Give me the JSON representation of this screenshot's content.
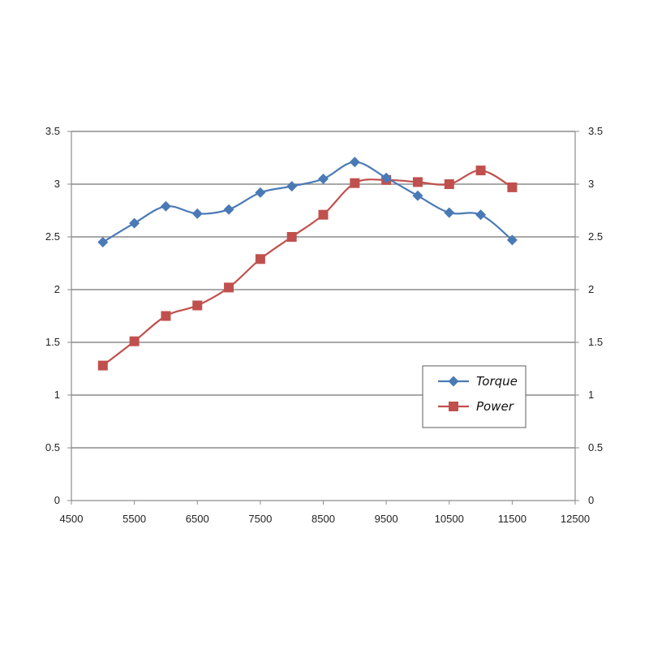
{
  "chart_data": {
    "type": "line",
    "title": "",
    "xlabel": "",
    "ylabel": "",
    "xlim": [
      4500,
      12500
    ],
    "ylim": [
      0,
      3.5
    ],
    "y2lim": [
      0,
      3.5
    ],
    "x_ticks": [
      "4500",
      "5500",
      "6500",
      "7500",
      "8500",
      "9500",
      "10500",
      "11500",
      "12500"
    ],
    "y_ticks": [
      "0",
      "0.5",
      "1",
      "1.5",
      "2",
      "2.5",
      "3",
      "3.5"
    ],
    "y2_ticks": [
      "0",
      "0.5",
      "1",
      "1.5",
      "2",
      "2.5",
      "3",
      "3.5"
    ],
    "grid": "horizontal",
    "legend_position": "right",
    "x": [
      5000,
      5500,
      6000,
      6500,
      7000,
      7500,
      8000,
      8500,
      9000,
      9500,
      10000,
      10500,
      11000,
      11500
    ],
    "series": [
      {
        "name": "Torque",
        "color": "#4a7ab5",
        "marker": "diamond",
        "values": [
          2.45,
          2.63,
          2.79,
          2.72,
          2.76,
          2.92,
          2.98,
          3.05,
          3.21,
          3.06,
          2.89,
          2.73,
          2.71,
          2.47
        ]
      },
      {
        "name": "Power",
        "color": "#c0504d",
        "marker": "square",
        "values": [
          1.28,
          1.51,
          1.75,
          1.85,
          2.02,
          2.29,
          2.5,
          2.71,
          3.01,
          3.04,
          3.02,
          3.0,
          3.13,
          2.97
        ]
      }
    ]
  }
}
